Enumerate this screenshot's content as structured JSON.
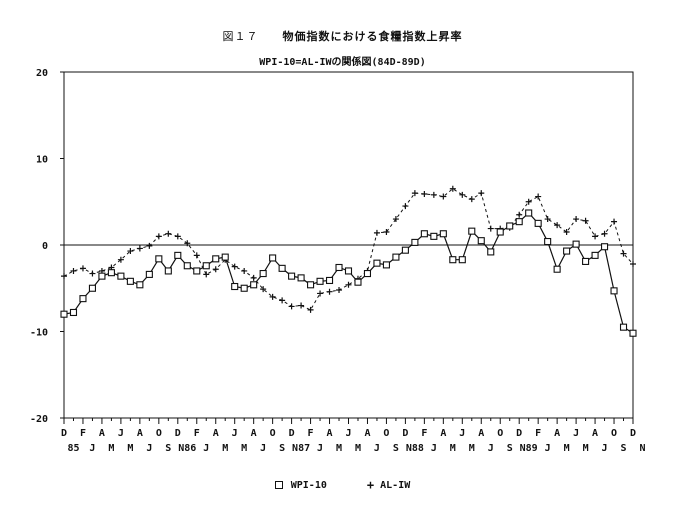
{
  "chart_data": {
    "type": "line",
    "figure_label": "図１７",
    "title": "物価指数における食糧指数上昇率",
    "subtitle": "WPI-10=AL-IWの関係図(84D-89D)",
    "xlabel": "",
    "ylabel": "",
    "ylim": [
      -20,
      20
    ],
    "yticks": [
      "20",
      "10",
      "0",
      "-10",
      "-20"
    ],
    "x_labels_top": [
      "D",
      "F",
      "A",
      "J",
      "A",
      "O",
      "D",
      "F",
      "A",
      "J",
      "A",
      "O",
      "D",
      "F",
      "A",
      "J",
      "A",
      "O",
      "D",
      "F",
      "A",
      "J",
      "A",
      "O",
      "D",
      "F",
      "A",
      "J",
      "A",
      "O",
      "D"
    ],
    "x_labels_bottom": [
      "85",
      "J",
      "M",
      "M",
      "J",
      "S",
      "N86",
      "J",
      "M",
      "M",
      "J",
      "S",
      "N87",
      "J",
      "M",
      "M",
      "J",
      "S",
      "N88",
      "J",
      "M",
      "M",
      "J",
      "S",
      "N89",
      "J",
      "M",
      "M",
      "J",
      "S",
      "N"
    ],
    "grid": false,
    "legend_position": "bottom",
    "series": [
      {
        "name": "WPI-10",
        "marker": "square",
        "line": "solid",
        "values": [
          -8.0,
          -7.8,
          -6.2,
          -5.0,
          -3.6,
          -3.2,
          -3.6,
          -4.2,
          -4.6,
          -3.4,
          -1.6,
          -3.0,
          -1.2,
          -2.4,
          -3.0,
          -2.4,
          -1.6,
          -1.4,
          -4.8,
          -5.0,
          -4.6,
          -3.3,
          -1.5,
          -2.7,
          -3.6,
          -3.8,
          -4.6,
          -4.2,
          -4.1,
          -2.6,
          -3.0,
          -4.3,
          -3.3,
          -2.1,
          -2.3,
          -1.4,
          -0.6,
          0.3,
          1.3,
          1.0,
          1.3,
          -1.7,
          -1.7,
          1.6,
          0.5,
          -0.8,
          1.5,
          2.2,
          2.7,
          3.7,
          2.5,
          0.4,
          -2.8,
          -0.7,
          0.1,
          -1.9,
          -1.2,
          -0.2,
          -5.3,
          -9.5,
          -10.2
        ]
      },
      {
        "name": "AL-IW",
        "marker": "plus",
        "line": "dashed",
        "values": [
          -3.6,
          -3.0,
          -2.7,
          -3.3,
          -3.0,
          -2.6,
          -1.7,
          -0.7,
          -0.4,
          -0.1,
          1.0,
          1.3,
          1.0,
          0.2,
          -1.2,
          -3.4,
          -2.8,
          -1.7,
          -2.5,
          -3.0,
          -3.8,
          -5.1,
          -6.0,
          -6.4,
          -7.1,
          -7.0,
          -7.5,
          -5.6,
          -5.4,
          -5.2,
          -4.6,
          -3.9,
          -3.0,
          1.4,
          1.5,
          3.0,
          4.5,
          6.0,
          5.9,
          5.8,
          5.6,
          6.5,
          5.8,
          5.3,
          6.0,
          1.9,
          1.9,
          2.0,
          3.5,
          5.0,
          5.6,
          3.0,
          2.3,
          1.5,
          3.0,
          2.8,
          1.0,
          1.3,
          2.7,
          -1.0,
          -2.2
        ]
      }
    ]
  }
}
